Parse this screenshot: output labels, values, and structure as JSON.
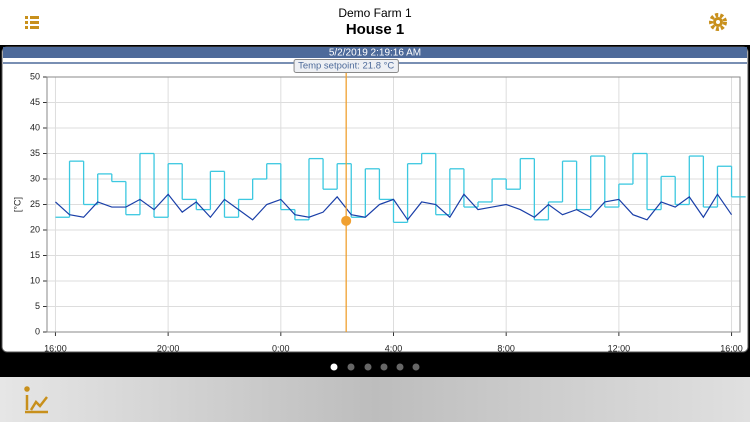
{
  "header": {
    "farm": "Demo Farm 1",
    "house": "House 1"
  },
  "chart_data": {
    "type": "line",
    "cursor": {
      "x": 10.32,
      "value": 21.8,
      "time_label": "5/2/2019 2:19:16 AM",
      "setpoint_label": "Temp setpoint: 21.8 °C",
      "color": "#f0a030"
    },
    "y_label": "[°C]",
    "x": [
      0,
      0.5,
      1,
      1.5,
      2,
      2.5,
      3,
      3.5,
      4,
      4.5,
      5,
      5.5,
      6,
      6.5,
      7,
      7.5,
      8,
      8.5,
      9,
      9.5,
      10,
      10.5,
      11,
      11.5,
      12,
      12.5,
      13,
      13.5,
      14,
      14.5,
      15,
      15.5,
      16,
      16.5,
      17,
      17.5,
      18,
      18.5,
      19,
      19.5,
      20,
      20.5,
      21,
      21.5,
      22,
      22.5,
      23,
      23.5,
      24
    ],
    "series": [
      {
        "color": "#3cc8e0",
        "step": true,
        "values": [
          22.5,
          33.5,
          25,
          31,
          29.5,
          23,
          35,
          22.5,
          33,
          26,
          24,
          31.5,
          22.5,
          26,
          30,
          33,
          24,
          22,
          34,
          28,
          33,
          22.5,
          32,
          26,
          21.5,
          33,
          35,
          23,
          32,
          24.5,
          25.5,
          30,
          28,
          34,
          22,
          25.5,
          33.5,
          24,
          34.5,
          24.5,
          29,
          35,
          24,
          30.5,
          25,
          34.5,
          24.5,
          32.5,
          26.5
        ]
      },
      {
        "color": "#1a3fa8",
        "step": false,
        "values": [
          25.5,
          23,
          22.5,
          25.5,
          24.5,
          24.5,
          26,
          24,
          27,
          23.5,
          25.5,
          22.5,
          26,
          24,
          22,
          25,
          26,
          23,
          22.5,
          23.5,
          26.5,
          23,
          22.5,
          25,
          26,
          22,
          25.5,
          25,
          22.5,
          27,
          24,
          24.5,
          25,
          24,
          22.5,
          25,
          23,
          24,
          22.5,
          25.5,
          26,
          23,
          22,
          25.5,
          24.5,
          26.5,
          22.5,
          27,
          23
        ]
      }
    ],
    "xlim": [
      -0.3,
      24.3
    ],
    "xticks": [
      {
        "value": 0,
        "label": "16:00"
      },
      {
        "value": 4,
        "label": "20:00"
      },
      {
        "value": 8,
        "label": "0:00"
      },
      {
        "value": 12,
        "label": "4:00"
      },
      {
        "value": 16,
        "label": "8:00"
      },
      {
        "value": 20,
        "label": "12:00"
      },
      {
        "value": 24,
        "label": "16:00"
      }
    ],
    "ylim": [
      0,
      50
    ],
    "yticks": [
      0,
      5,
      10,
      15,
      20,
      25,
      30,
      35,
      40,
      45,
      50
    ],
    "grid": true
  }
}
